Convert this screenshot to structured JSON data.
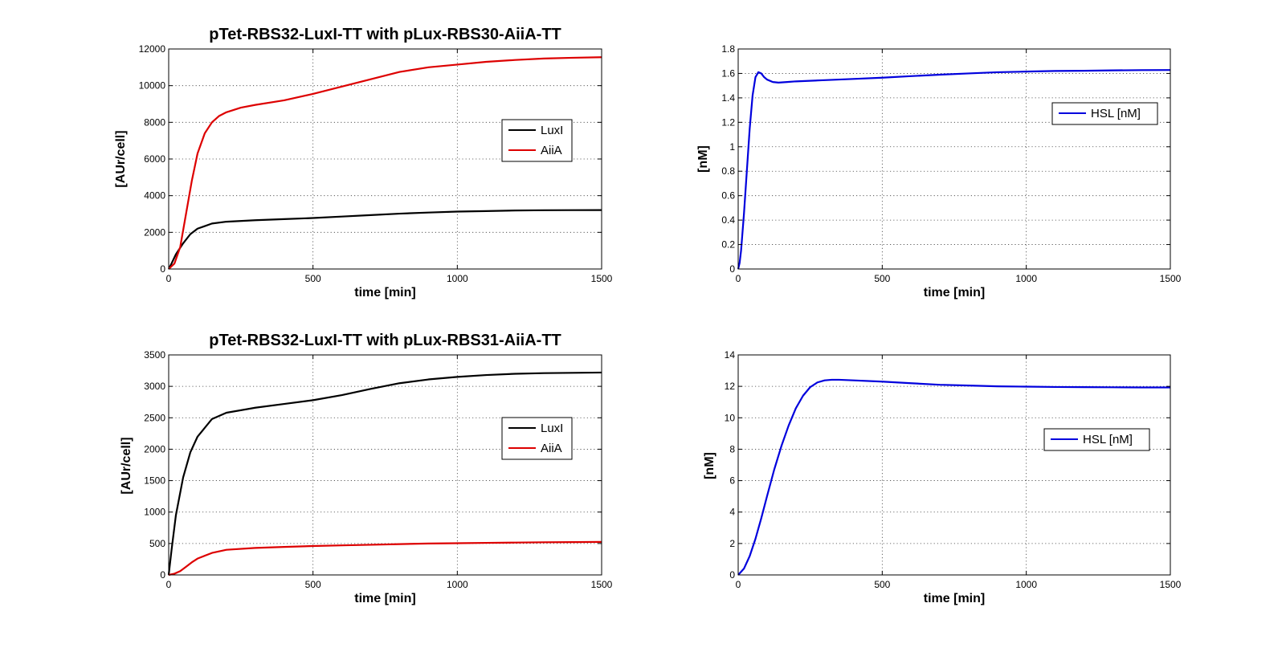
{
  "chart_data": [
    {
      "type": "line",
      "title": "pTet-RBS32-LuxI-TT with pLux-RBS30-AiiA-TT",
      "xlabel": "time [min]",
      "ylabel": "[AUr/cell]",
      "xlim": [
        0,
        1500
      ],
      "ylim": [
        0,
        12000
      ],
      "xticks": [
        0,
        500,
        1000,
        1500
      ],
      "yticks": [
        0,
        2000,
        4000,
        6000,
        8000,
        10000,
        12000
      ],
      "grid": true,
      "legend": "right",
      "series": [
        {
          "name": "LuxI",
          "color": "#000000",
          "x": [
            0,
            10,
            25,
            50,
            75,
            100,
            150,
            200,
            300,
            400,
            500,
            600,
            700,
            800,
            900,
            1000,
            1100,
            1200,
            1300,
            1400,
            1500
          ],
          "y": [
            0,
            300,
            800,
            1400,
            1900,
            2200,
            2480,
            2580,
            2660,
            2720,
            2780,
            2860,
            2940,
            3020,
            3080,
            3130,
            3160,
            3190,
            3205,
            3210,
            3215
          ]
        },
        {
          "name": "AiiA",
          "color": "#dd0000",
          "x": [
            0,
            20,
            40,
            60,
            80,
            100,
            125,
            150,
            175,
            200,
            250,
            300,
            400,
            500,
            600,
            700,
            800,
            900,
            1000,
            1100,
            1200,
            1300,
            1400,
            1500
          ],
          "y": [
            0,
            300,
            1200,
            3000,
            4800,
            6300,
            7400,
            8000,
            8350,
            8550,
            8800,
            8950,
            9200,
            9550,
            9950,
            10350,
            10750,
            11000,
            11150,
            11300,
            11400,
            11480,
            11520,
            11550
          ]
        }
      ]
    },
    {
      "type": "line",
      "title": "",
      "xlabel": "time [min]",
      "ylabel": "[nM]",
      "xlim": [
        0,
        1500
      ],
      "ylim": [
        0,
        1.8
      ],
      "xticks": [
        0,
        500,
        1000,
        1500
      ],
      "yticks": [
        0,
        0.2,
        0.4,
        0.6,
        0.8,
        1,
        1.2,
        1.4,
        1.6,
        1.8
      ],
      "grid": true,
      "legend": "right",
      "series": [
        {
          "name": "HSL [nM]",
          "color": "#0000dd",
          "x": [
            0,
            5,
            10,
            20,
            30,
            40,
            50,
            60,
            70,
            80,
            90,
            100,
            120,
            140,
            170,
            200,
            300,
            400,
            500,
            600,
            700,
            800,
            900,
            1000,
            1100,
            1200,
            1300,
            1400,
            1500
          ],
          "y": [
            0,
            0.05,
            0.15,
            0.45,
            0.8,
            1.15,
            1.42,
            1.57,
            1.61,
            1.6,
            1.57,
            1.55,
            1.53,
            1.525,
            1.53,
            1.535,
            1.545,
            1.555,
            1.565,
            1.578,
            1.59,
            1.6,
            1.61,
            1.615,
            1.62,
            1.622,
            1.625,
            1.627,
            1.628
          ]
        }
      ]
    },
    {
      "type": "line",
      "title": "pTet-RBS32-LuxI-TT with pLux-RBS31-AiiA-TT",
      "xlabel": "time [min]",
      "ylabel": "[AUr/cell]",
      "xlim": [
        0,
        1500
      ],
      "ylim": [
        0,
        3500
      ],
      "xticks": [
        0,
        500,
        1000,
        1500
      ],
      "yticks": [
        0,
        500,
        1000,
        1500,
        2000,
        2500,
        3000,
        3500
      ],
      "grid": true,
      "legend": "right",
      "series": [
        {
          "name": "LuxI",
          "color": "#000000",
          "x": [
            0,
            10,
            25,
            50,
            75,
            100,
            150,
            200,
            300,
            400,
            500,
            600,
            700,
            800,
            900,
            1000,
            1100,
            1200,
            1300,
            1400,
            1500
          ],
          "y": [
            0,
            400,
            950,
            1550,
            1950,
            2200,
            2480,
            2580,
            2660,
            2720,
            2780,
            2860,
            2960,
            3050,
            3110,
            3150,
            3180,
            3200,
            3210,
            3215,
            3220
          ]
        },
        {
          "name": "AiiA",
          "color": "#dd0000",
          "x": [
            0,
            20,
            40,
            60,
            80,
            100,
            150,
            200,
            300,
            400,
            500,
            600,
            700,
            800,
            900,
            1000,
            1100,
            1200,
            1300,
            1400,
            1500
          ],
          "y": [
            0,
            20,
            60,
            130,
            200,
            260,
            350,
            400,
            430,
            445,
            460,
            470,
            480,
            490,
            500,
            505,
            510,
            515,
            520,
            522,
            525
          ]
        }
      ]
    },
    {
      "type": "line",
      "title": "",
      "xlabel": "time [min]",
      "ylabel": "[nM]",
      "xlim": [
        0,
        1500
      ],
      "ylim": [
        0,
        14
      ],
      "xticks": [
        0,
        500,
        1000,
        1500
      ],
      "yticks": [
        0,
        2,
        4,
        6,
        8,
        10,
        12,
        14
      ],
      "grid": true,
      "legend": "right",
      "series": [
        {
          "name": "HSL [nM]",
          "color": "#0000dd",
          "x": [
            0,
            20,
            40,
            60,
            80,
            100,
            125,
            150,
            175,
            200,
            225,
            250,
            275,
            300,
            325,
            350,
            400,
            500,
            600,
            700,
            800,
            900,
            1000,
            1100,
            1200,
            1300,
            1400,
            1500
          ],
          "y": [
            0,
            0.4,
            1.2,
            2.3,
            3.6,
            5.0,
            6.7,
            8.2,
            9.5,
            10.6,
            11.4,
            11.95,
            12.25,
            12.38,
            12.42,
            12.42,
            12.38,
            12.3,
            12.2,
            12.1,
            12.05,
            12.0,
            11.98,
            11.96,
            11.95,
            11.94,
            11.93,
            11.93
          ]
        }
      ]
    }
  ]
}
